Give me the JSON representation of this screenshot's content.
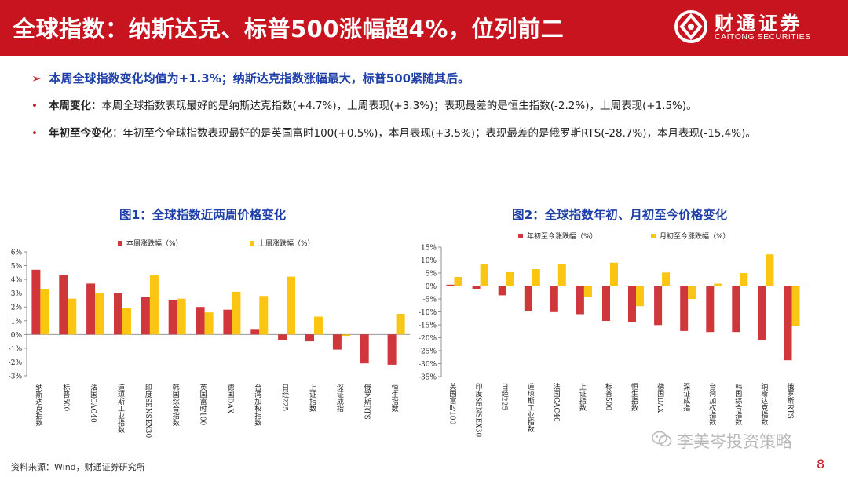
{
  "header": {
    "title": "全球指数：纳斯达克、标普500涨幅超4%，位列前二",
    "logo_cn": "财通证券",
    "logo_en": "CAITONG SECURITIES"
  },
  "summary": "本周全球指数变化均值为+1.3%；纳斯达克指数涨幅最大，标普500紧随其后。",
  "bullets": [
    {
      "label": "本周变化",
      "sep": "：",
      "text": "本周全球指数表现最好的是纳斯达克指数(+4.7%)，上周表现(+3.3%)；表现最差的是恒生指数(-2.2%)，上周表现(+1.5%)。"
    },
    {
      "label": "年初至今变化",
      "sep": "：",
      "text": "年初至今全球指数表现最好的是英国富时100(+0.5%)，本月表现(+3.5%)；表现最差的是俄罗斯RTS(-28.7%)，本月表现(-15.4%)。"
    }
  ],
  "chart_data": [
    {
      "type": "bar",
      "title": "图1：全球指数近两周价格变化",
      "categories": [
        "纳斯达克指数",
        "标普500",
        "法国CAC40",
        "道琼斯工业指数",
        "印度SENSEX30",
        "韩国综合指数",
        "英国富时100",
        "德国DAX",
        "台湾加权指数",
        "日经225",
        "上证指数",
        "深证成指",
        "俄罗斯RTS",
        "恒生指数"
      ],
      "series": [
        {
          "name": "本周涨跌幅（%）",
          "color": "#d0373b",
          "values": [
            4.7,
            4.3,
            3.7,
            3.0,
            2.7,
            2.5,
            2.0,
            1.8,
            0.4,
            -0.4,
            -0.5,
            -1.1,
            -2.1,
            -2.2
          ]
        },
        {
          "name": "上周涨跌幅（%）",
          "color": "#fbc513",
          "values": [
            3.3,
            2.6,
            3.0,
            1.9,
            4.3,
            2.6,
            1.6,
            3.1,
            2.8,
            4.2,
            1.3,
            -0.1,
            0.0,
            1.5
          ]
        }
      ],
      "yticks": [
        "6%",
        "5%",
        "4%",
        "3%",
        "2%",
        "1%",
        "0%",
        "-1%",
        "-2%",
        "-3%"
      ],
      "ylim": [
        -3,
        6
      ]
    },
    {
      "type": "bar",
      "title": "图2：全球指数年初、月初至今价格变化",
      "categories": [
        "英国富时100",
        "印度SENSEX30",
        "日经225",
        "道琼斯工业指数",
        "法国CAC40",
        "上证指数",
        "标普500",
        "恒生指数",
        "德国DAX",
        "深证成指",
        "台湾加权指数",
        "韩国综合指数",
        "纳斯达克指数",
        "俄罗斯RTS"
      ],
      "series": [
        {
          "name": "年初至今涨跌幅（%）",
          "color": "#d0373b",
          "values": [
            0.5,
            -1.2,
            -3.6,
            -9.8,
            -10.1,
            -10.9,
            -13.5,
            -14.0,
            -15.1,
            -17.4,
            -17.8,
            -17.8,
            -20.9,
            -28.7
          ]
        },
        {
          "name": "月初至今涨跌幅（%）",
          "color": "#fbc513",
          "values": [
            3.5,
            8.5,
            5.3,
            6.5,
            8.6,
            -4.2,
            9.0,
            -7.8,
            5.2,
            -5.0,
            0.9,
            5.0,
            12.2,
            -15.4
          ]
        }
      ],
      "yticks": [
        "15%",
        "10%",
        "5%",
        "0%",
        "-5%",
        "-10%",
        "-15%",
        "-20%",
        "-25%",
        "-30%",
        "-35%"
      ],
      "ylim": [
        -35,
        15
      ]
    }
  ],
  "source": "资料来源：Wind，财通证券研究所",
  "page_number": "8",
  "watermark": "李美岑投资策略"
}
